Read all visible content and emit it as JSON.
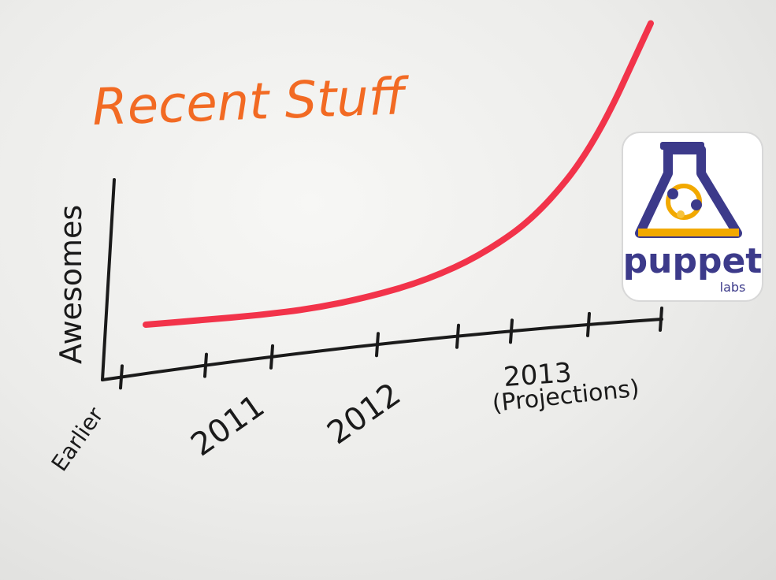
{
  "chart_data": {
    "type": "line",
    "title": "Recent Stuff",
    "ylabel": "Awesomes",
    "xlabel": "",
    "x_tick_labels": [
      "Earlier",
      "2011",
      "2012",
      "2013",
      "(Projections)"
    ],
    "x_tick_count": 8,
    "series": [
      {
        "values_description": "",
        "points": [
          [
            0,
            1
          ],
          [
            1,
            3
          ],
          [
            2,
            5
          ],
          [
            3,
            8
          ],
          [
            4,
            13
          ],
          [
            5,
            20
          ],
          [
            6,
            31
          ],
          [
            7,
            48
          ],
          [
            8,
            78
          ],
          [
            9,
            130
          ]
        ]
      }
    ],
    "colors": {
      "title": "#f26a23",
      "curve": "#f2334a",
      "axes": "#1a1a1a"
    },
    "grid": false,
    "ylim": [
      0,
      140
    ]
  },
  "sticker": {
    "brand": "puppet",
    "sub": "labs",
    "icon": "flask-icon",
    "colors": {
      "primary": "#3c3a8a",
      "accent": "#f2a900",
      "accent2": "#f7c33b"
    }
  }
}
